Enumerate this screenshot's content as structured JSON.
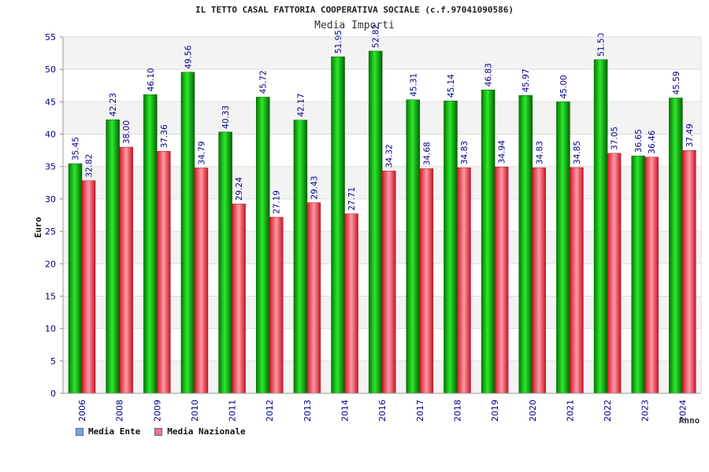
{
  "chart_data": {
    "type": "bar",
    "title": "IL TETTO CASAL FATTORIA COOPERATIVA SOCIALE (c.f.97041090586)",
    "subtitle": "Media Importi",
    "xlabel": "Anno",
    "ylabel": "Euro",
    "ylim": [
      0,
      55
    ],
    "yticks": [
      0,
      5,
      10,
      15,
      20,
      25,
      30,
      35,
      40,
      45,
      50,
      55
    ],
    "grid": true,
    "legend_position": "bottom-left",
    "categories": [
      "2006",
      "2008",
      "2009",
      "2010",
      "2011",
      "2012",
      "2013",
      "2014",
      "2016",
      "2017",
      "2018",
      "2019",
      "2020",
      "2021",
      "2022",
      "2023",
      "2024"
    ],
    "series": [
      {
        "name": "Media Ente",
        "color": "#00b000",
        "legend_color": "#6fa8f0",
        "values": [
          35.45,
          42.23,
          46.1,
          49.56,
          40.33,
          45.72,
          42.17,
          51.95,
          52.82,
          45.31,
          45.14,
          46.83,
          45.97,
          45.0,
          51.5,
          36.65,
          45.59
        ],
        "labels": [
          "35.45",
          "42.23",
          "46.10",
          "49.56",
          "40.33",
          "45.72",
          "42.17",
          "51.95",
          "52.82",
          "45.31",
          "45.14",
          "46.83",
          "45.97",
          "45.00",
          "51.50",
          "36.65",
          "45.59"
        ]
      },
      {
        "name": "Media Nazionale",
        "color": "#e83040",
        "legend_color": "#e870a8",
        "values": [
          32.82,
          38.0,
          37.36,
          34.79,
          29.24,
          27.19,
          29.43,
          27.71,
          34.32,
          34.68,
          34.83,
          34.94,
          34.83,
          34.85,
          37.05,
          36.46,
          37.49
        ],
        "labels": [
          "32.82",
          "38.00",
          "37.36",
          "34.79",
          "29.24",
          "27.19",
          "29.43",
          "27.71",
          "34.32",
          "34.68",
          "34.83",
          "34.94",
          "34.83",
          "34.85",
          "37.05",
          "36.46",
          "37.49"
        ]
      }
    ]
  }
}
